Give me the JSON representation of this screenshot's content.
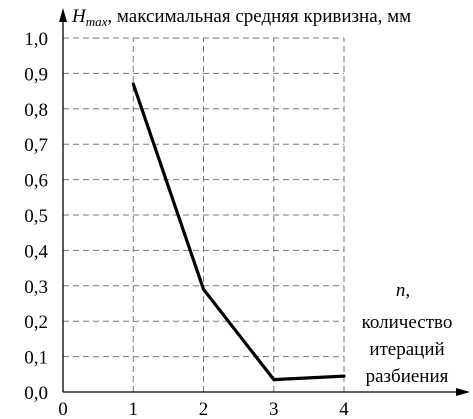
{
  "chart_data": {
    "type": "line",
    "ylabel_symbol": "H",
    "ylabel_subscript": "max",
    "ylabel_text": ", максимальная средняя кривизна, мм",
    "xlabel_symbol": "n,",
    "xlabel_lines": [
      "количество",
      "итераций",
      "разбиения"
    ],
    "xlim": [
      0,
      4
    ],
    "ylim": [
      0,
      1.0
    ],
    "x_ticks": [
      "0",
      "1",
      "2",
      "3",
      "4"
    ],
    "y_ticks": [
      "0,0",
      "0,1",
      "0,2",
      "0,3",
      "0,4",
      "0,5",
      "0,6",
      "0,7",
      "0,8",
      "0,9",
      "1,0"
    ],
    "grid": true,
    "series": [
      {
        "x": [
          1,
          2,
          3,
          4
        ],
        "y": [
          0.87,
          0.29,
          0.035,
          0.045
        ]
      }
    ]
  }
}
